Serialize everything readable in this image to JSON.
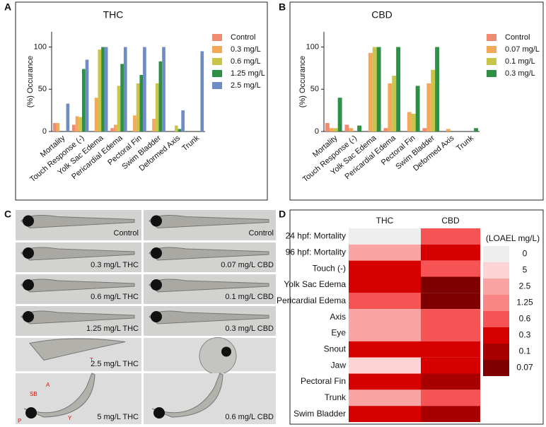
{
  "panel_labels": [
    "A",
    "B",
    "C",
    "D"
  ],
  "chart_data": [
    {
      "type": "bar",
      "title": "THC",
      "y_label": "(%) Occurance",
      "categories": [
        "Mortality",
        "Touch Response (-)",
        "Yolk Sac Edema",
        "Pericardial Edema",
        "Pectoral Fin",
        "Swim Bladder",
        "Deformed Axis",
        "Trunk"
      ],
      "series": [
        {
          "name": "Control",
          "color": "#ef8a73",
          "values": [
            10,
            8,
            0,
            4,
            0,
            0,
            0,
            0
          ]
        },
        {
          "name": "0.3 mg/L",
          "color": "#f4a95a",
          "values": [
            10,
            18,
            40,
            8,
            19,
            15,
            0,
            0
          ]
        },
        {
          "name": "0.6 mg/L",
          "color": "#c9c44a",
          "values": [
            0,
            17,
            97,
            54,
            57,
            57,
            7,
            0
          ]
        },
        {
          "name": "1.25 mg/L",
          "color": "#2f8f45",
          "values": [
            0,
            74,
            100,
            80,
            67,
            83,
            3,
            0
          ]
        },
        {
          "name": "2.5 mg/L",
          "color": "#6f8cc4",
          "values": [
            33,
            85,
            100,
            100,
            100,
            100,
            25,
            95
          ]
        }
      ],
      "ylim": [
        0,
        118
      ],
      "yticks": [
        0,
        50,
        100
      ]
    },
    {
      "type": "bar",
      "title": "CBD",
      "y_label": "(%) Occurance",
      "categories": [
        "Mortality",
        "Touch Response (-)",
        "Yolk Sac Edema",
        "Pericardial Edema",
        "Pectoral Fin",
        "Swim Bladder",
        "Deformed Axis",
        "Trunk"
      ],
      "series": [
        {
          "name": "Control",
          "color": "#ef8a73",
          "values": [
            10,
            8,
            0,
            4,
            0,
            4,
            0,
            0
          ]
        },
        {
          "name": "0.07 mg/L",
          "color": "#f4a95a",
          "values": [
            4,
            4,
            93,
            57,
            23,
            57,
            3,
            0
          ]
        },
        {
          "name": "0.1 mg/L",
          "color": "#c9c44a",
          "values": [
            4,
            0,
            100,
            66,
            21,
            73,
            0,
            0
          ]
        },
        {
          "name": "0.3 mg/L",
          "color": "#2f8f45",
          "values": [
            40,
            7,
            100,
            100,
            54,
            100,
            0,
            4
          ]
        }
      ],
      "ylim": [
        0,
        118
      ],
      "yticks": [
        0,
        50,
        100
      ]
    },
    {
      "type": "heatmap",
      "columns": [
        "THC",
        "CBD"
      ],
      "rows": [
        "24 hpf: Mortality",
        "96 hpf: Mortality",
        "Touch (-)",
        "Yolk Sac Edema",
        "Pericardial Edema",
        "Axis",
        "Eye",
        "Snout",
        "Jaw",
        "Pectoral Fin",
        "Trunk",
        "Swim Bladder"
      ],
      "values": [
        [
          0,
          0.6
        ],
        [
          2.5,
          0.3
        ],
        [
          0.3,
          0.6
        ],
        [
          0.3,
          0.07
        ],
        [
          0.6,
          0.07
        ],
        [
          2.5,
          0.6
        ],
        [
          2.5,
          0.6
        ],
        [
          0.3,
          0.3
        ],
        [
          5,
          0.3
        ],
        [
          0.3,
          0.1
        ],
        [
          2.5,
          0.6
        ],
        [
          0.3,
          0.1
        ]
      ],
      "scale": {
        "title": "(LOAEL mg/L)",
        "values": [
          0,
          5,
          2.5,
          1.25,
          0.6,
          0.3,
          0.1,
          0.07
        ],
        "colors": [
          "#eeeeee",
          "#fdd3d3",
          "#fba4a4",
          "#f98585",
          "#f65454",
          "#d60000",
          "#a80000",
          "#7e0000"
        ]
      }
    }
  ],
  "images": {
    "left_labels": [
      "Control",
      "0.3 mg/L THC",
      "0.6 mg/L THC",
      "1.25 mg/L THC",
      "2.5 mg/L THC",
      "5 mg/L THC"
    ],
    "right_labels": [
      "Control",
      "0.07 mg/L CBD",
      "0.1 mg/L CBD",
      "0.3 mg/L CBD",
      "0.6 mg/L CBD"
    ],
    "annotations": [
      "T",
      "A",
      "SB",
      "Y",
      "P"
    ]
  }
}
